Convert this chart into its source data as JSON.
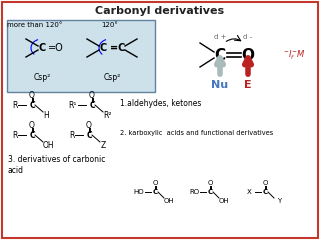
{
  "title": "Carbonyl derivatives",
  "title_fontsize": 8,
  "title_color": "#222222",
  "border_color": "#c0392b",
  "bg_color": "#ffffff",
  "box_bg": "#c5dce8",
  "box_border": "#4a7090",
  "nu_color": "#4477bb",
  "e_color": "#bb2222",
  "effect_color": "#bb2222",
  "gray_arrow": "#aabbbb",
  "sec1_text": "1.aldehydes, ketones",
  "sec2_text": "2. karboxylic  acids and functional derivatives",
  "sec3_text": "3. derivatives of carbonic\nacid",
  "box_label1": "more than 120°",
  "box_label2": "120°",
  "csp2": "Csp²"
}
